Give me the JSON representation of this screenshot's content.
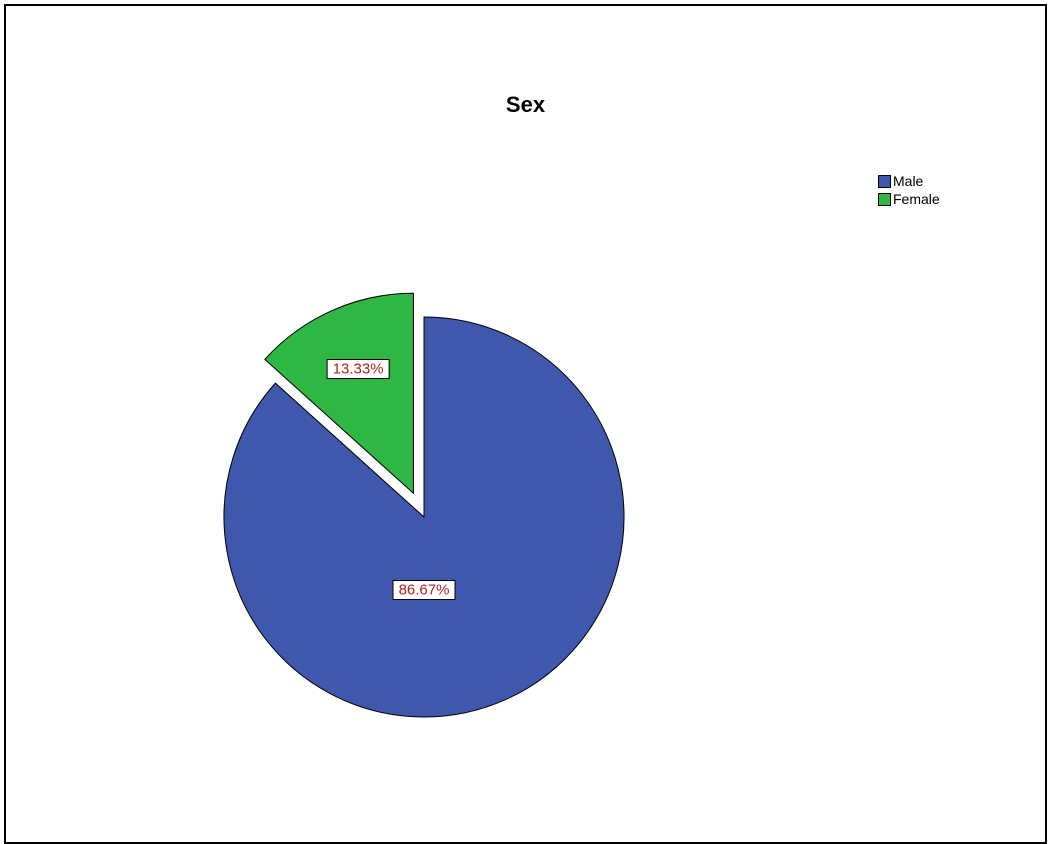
{
  "chart_data": {
    "type": "pie",
    "title": "Sex",
    "categories": [
      "Male",
      "Female"
    ],
    "values": [
      86.67,
      13.33
    ],
    "data_labels": [
      "86.67%",
      "13.33%"
    ],
    "colors": [
      "#3f57ad",
      "#2eb843"
    ],
    "exploded": [
      "Female"
    ],
    "legend_placement": "top-right"
  }
}
